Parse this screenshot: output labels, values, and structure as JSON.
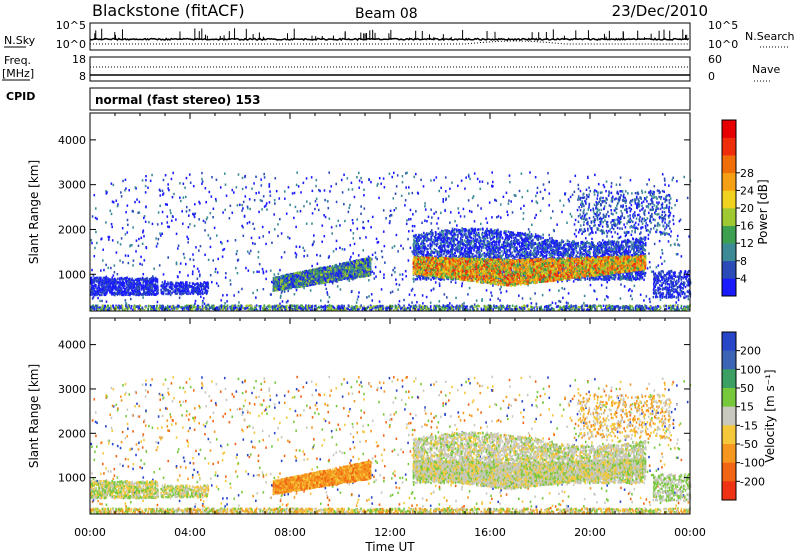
{
  "header": {
    "station": "Blackstone (fitACF)",
    "beam": "Beam 08",
    "date": "23/Dec/2010"
  },
  "nsky_panel": {
    "label": "N.Sky",
    "right_label": "N.Search",
    "left_ticks": [
      "10^5",
      "10^0"
    ],
    "right_ticks": [
      "10^5",
      "10^0"
    ]
  },
  "freq_panel": {
    "label_line1": "Freq.",
    "label_line2": "[MHz]",
    "right_label": "Nave",
    "left_ticks": [
      "18",
      "8"
    ],
    "right_ticks": [
      "60",
      "0"
    ]
  },
  "cpid": {
    "label": "CPID",
    "text": "normal (fast stereo) 153"
  },
  "chart_data": [
    {
      "type": "heatmap",
      "name": "Power",
      "ylabel": "Slant Range [km]",
      "xlabel": "Time UT",
      "x_ticks": [
        "00:00",
        "04:00",
        "08:00",
        "12:00",
        "16:00",
        "20:00",
        "00:00"
      ],
      "xlim": [
        0,
        24
      ],
      "y_ticks": [
        1000,
        2000,
        3000,
        4000
      ],
      "ylim": [
        180,
        4600
      ],
      "colorbar": {
        "label": "Power [dB]",
        "ticks": [
          "4",
          "8",
          "12",
          "16",
          "20",
          "24",
          "28"
        ],
        "colors": [
          "#1a1aff",
          "#2a4bb8",
          "#3c8a96",
          "#3ca050",
          "#a0c832",
          "#f0d21e",
          "#f5a014",
          "#f06e0a",
          "#f02d0a",
          "#e60000"
        ]
      }
    },
    {
      "type": "heatmap",
      "name": "Velocity",
      "ylabel": "Slant Range [km]",
      "xlabel": "Time UT",
      "x_ticks": [
        "00:00",
        "04:00",
        "08:00",
        "12:00",
        "16:00",
        "20:00",
        "00:00"
      ],
      "xlim": [
        0,
        24
      ],
      "y_ticks": [
        1000,
        2000,
        3000,
        4000
      ],
      "ylim": [
        180,
        4600
      ],
      "colorbar": {
        "label": "Velocity [m s⁻¹]",
        "ticks": [
          "200",
          "100",
          "50",
          "15",
          "-15",
          "-50",
          "-100",
          "-200"
        ],
        "colors": [
          "#2846c8",
          "#3c64b4",
          "#3ca064",
          "#78c83c",
          "#c8c8be",
          "#f5c83c",
          "#f5961e",
          "#f06414",
          "#f03214"
        ]
      }
    }
  ]
}
